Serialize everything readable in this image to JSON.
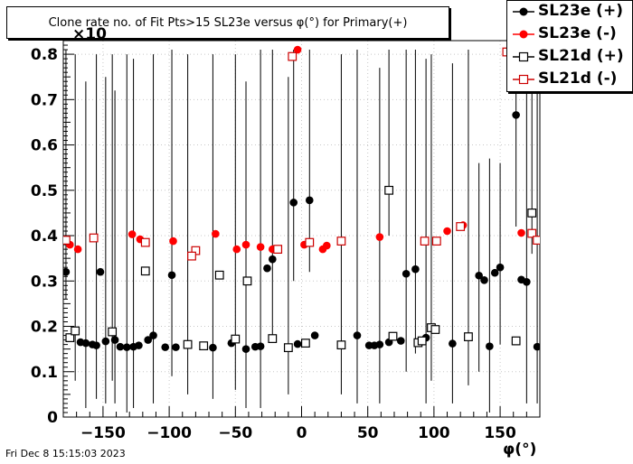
{
  "title": "Clone rate no. of Fit Pts>15 SL23e versus φ(°) for Primary(+)",
  "footer_date": "Fri Dec  8 15:15:03 2023",
  "x_axis_title": "φ(°)",
  "y_exponent_label": "×10",
  "legend": [
    {
      "label": "SL23e (+)",
      "color": "#000000",
      "marker": "filled-circle"
    },
    {
      "label": "SL23e (-)",
      "color": "#ff0000",
      "marker": "filled-circle"
    },
    {
      "label": "SL21d (+)",
      "color": "#000000",
      "marker": "open-square"
    },
    {
      "label": "SL21d (-)",
      "color": "#cc0000",
      "marker": "open-square"
    }
  ],
  "chart_data": {
    "type": "scatter",
    "title": "Clone rate no. of Fit Pts>15 SL23e versus φ(°) for Primary(+)",
    "xlabel": "φ(°)",
    "ylabel": "",
    "xlim": [
      -180,
      180
    ],
    "ylim": [
      0,
      0.83
    ],
    "xticks": [
      -150,
      -100,
      -50,
      0,
      50,
      100,
      150
    ],
    "xtick_labels": [
      "−150",
      "−100",
      "−50",
      "0",
      "50",
      "100",
      "150"
    ],
    "yticks": [
      0,
      0.1,
      0.2,
      0.3,
      0.4,
      0.5,
      0.6,
      0.7,
      0.8
    ],
    "ytick_labels": [
      "0",
      "0.1",
      "0.2",
      "0.3",
      "0.4",
      "0.5",
      "0.6",
      "0.7",
      "0.8"
    ],
    "grid": true,
    "legend_position": "top-right",
    "series": [
      {
        "name": "SL23e (+)",
        "color": "#000000",
        "marker": "filled-circle",
        "points": [
          [
            -178,
            0.32
          ],
          [
            -167,
            0.165
          ],
          [
            -163,
            0.163
          ],
          [
            -158,
            0.16
          ],
          [
            -155,
            0.158
          ],
          [
            -152,
            0.32
          ],
          [
            -148,
            0.167
          ],
          [
            -141,
            0.17
          ],
          [
            -137,
            0.155
          ],
          [
            -132,
            0.154
          ],
          [
            -127,
            0.155
          ],
          [
            -123,
            0.158
          ],
          [
            -116,
            0.17
          ],
          [
            -112,
            0.18
          ],
          [
            -103,
            0.154
          ],
          [
            -98,
            0.313
          ],
          [
            -95,
            0.154
          ],
          [
            -67,
            0.153
          ],
          [
            -53,
            0.163
          ],
          [
            -42,
            0.15
          ],
          [
            -35,
            0.155
          ],
          [
            -31,
            0.156
          ],
          [
            -26,
            0.328
          ],
          [
            -22,
            0.348
          ],
          [
            -6,
            0.473
          ],
          [
            -3,
            0.161
          ],
          [
            6,
            0.478
          ],
          [
            10,
            0.18
          ],
          [
            42,
            0.18
          ],
          [
            51,
            0.158
          ],
          [
            55,
            0.158
          ],
          [
            59,
            0.16
          ],
          [
            66,
            0.165
          ],
          [
            75,
            0.168
          ],
          [
            79,
            0.316
          ],
          [
            86,
            0.326
          ],
          [
            94,
            0.175
          ],
          [
            114,
            0.162
          ],
          [
            134,
            0.312
          ],
          [
            138,
            0.302
          ],
          [
            142,
            0.156
          ],
          [
            146,
            0.318
          ],
          [
            150,
            0.33
          ],
          [
            162,
            0.666
          ],
          [
            166,
            0.303
          ],
          [
            170,
            0.298
          ],
          [
            178,
            0.155
          ]
        ],
        "errors": [
          [
            -178,
            0.26,
            0.81
          ],
          [
            -163,
            0.02,
            0.74
          ],
          [
            -155,
            0.04,
            0.8
          ],
          [
            -148,
            0.03,
            0.75
          ],
          [
            -141,
            0.03,
            0.72
          ],
          [
            -132,
            0.01,
            0.8
          ],
          [
            -127,
            0.02,
            0.79
          ],
          [
            -112,
            0.03,
            0.8
          ],
          [
            -98,
            0.09,
            0.81
          ],
          [
            -67,
            0.04,
            0.8
          ],
          [
            -42,
            0.02,
            0.74
          ],
          [
            -31,
            0.02,
            0.81
          ],
          [
            -22,
            0.17,
            0.81
          ],
          [
            -6,
            0.3,
            0.81
          ],
          [
            6,
            0.32,
            0.81
          ],
          [
            42,
            0.03,
            0.81
          ],
          [
            59,
            0.03,
            0.77
          ],
          [
            79,
            0.1,
            0.81
          ],
          [
            86,
            0.14,
            0.81
          ],
          [
            94,
            0.03,
            0.79
          ],
          [
            114,
            0.03,
            0.78
          ],
          [
            134,
            0.1,
            0.56
          ],
          [
            142,
            0.01,
            0.57
          ],
          [
            150,
            0.16,
            0.56
          ],
          [
            162,
            0.42,
            0.81
          ],
          [
            170,
            0.03,
            0.81
          ],
          [
            178,
            0.03,
            0.81
          ]
        ]
      },
      {
        "name": "SL23e (-)",
        "color": "#ff0000",
        "marker": "filled-circle",
        "points": [
          [
            -175,
            0.38
          ],
          [
            -169,
            0.37
          ],
          [
            -128,
            0.403
          ],
          [
            -122,
            0.392
          ],
          [
            -97,
            0.388
          ],
          [
            -65,
            0.404
          ],
          [
            -49,
            0.37
          ],
          [
            -42,
            0.38
          ],
          [
            -31,
            0.375
          ],
          [
            -22,
            0.37
          ],
          [
            -3,
            0.81
          ],
          [
            2,
            0.38
          ],
          [
            16,
            0.37
          ],
          [
            19,
            0.378
          ],
          [
            59,
            0.397
          ],
          [
            110,
            0.41
          ],
          [
            122,
            0.423
          ],
          [
            166,
            0.406
          ]
        ]
      },
      {
        "name": "SL21d (+)",
        "color": "#000000",
        "marker": "open-square",
        "points": [
          [
            -175,
            0.175
          ],
          [
            -171,
            0.19
          ],
          [
            -143,
            0.188
          ],
          [
            -118,
            0.322
          ],
          [
            -86,
            0.16
          ],
          [
            -74,
            0.157
          ],
          [
            -62,
            0.313
          ],
          [
            -50,
            0.172
          ],
          [
            -41,
            0.3
          ],
          [
            -22,
            0.173
          ],
          [
            -10,
            0.153
          ],
          [
            3,
            0.163
          ],
          [
            30,
            0.159
          ],
          [
            66,
            0.5
          ],
          [
            69,
            0.178
          ],
          [
            88,
            0.164
          ],
          [
            91,
            0.168
          ],
          [
            98,
            0.197
          ],
          [
            101,
            0.193
          ],
          [
            126,
            0.177
          ],
          [
            162,
            0.168
          ],
          [
            174,
            0.45
          ]
        ],
        "errors": [
          [
            -171,
            0.08,
            0.8
          ],
          [
            -143,
            0.08,
            0.8
          ],
          [
            -86,
            0.05,
            0.8
          ],
          [
            -50,
            0.06,
            0.8
          ],
          [
            -10,
            0.05,
            0.75
          ],
          [
            30,
            0.05,
            0.8
          ],
          [
            66,
            0.4,
            0.81
          ],
          [
            98,
            0.08,
            0.8
          ],
          [
            126,
            0.07,
            0.81
          ],
          [
            174,
            0.36,
            0.81
          ]
        ]
      },
      {
        "name": "SL21d (-)",
        "color": "#cc0000",
        "marker": "open-square",
        "points": [
          [
            -178,
            0.39
          ],
          [
            -157,
            0.395
          ],
          [
            -118,
            0.385
          ],
          [
            -80,
            0.367
          ],
          [
            -83,
            0.355
          ],
          [
            -18,
            0.37
          ],
          [
            -7,
            0.795
          ],
          [
            6,
            0.385
          ],
          [
            30,
            0.388
          ],
          [
            93,
            0.388
          ],
          [
            102,
            0.388
          ],
          [
            120,
            0.42
          ],
          [
            155,
            0.805
          ],
          [
            174,
            0.405
          ],
          [
            178,
            0.39
          ]
        ]
      }
    ]
  }
}
